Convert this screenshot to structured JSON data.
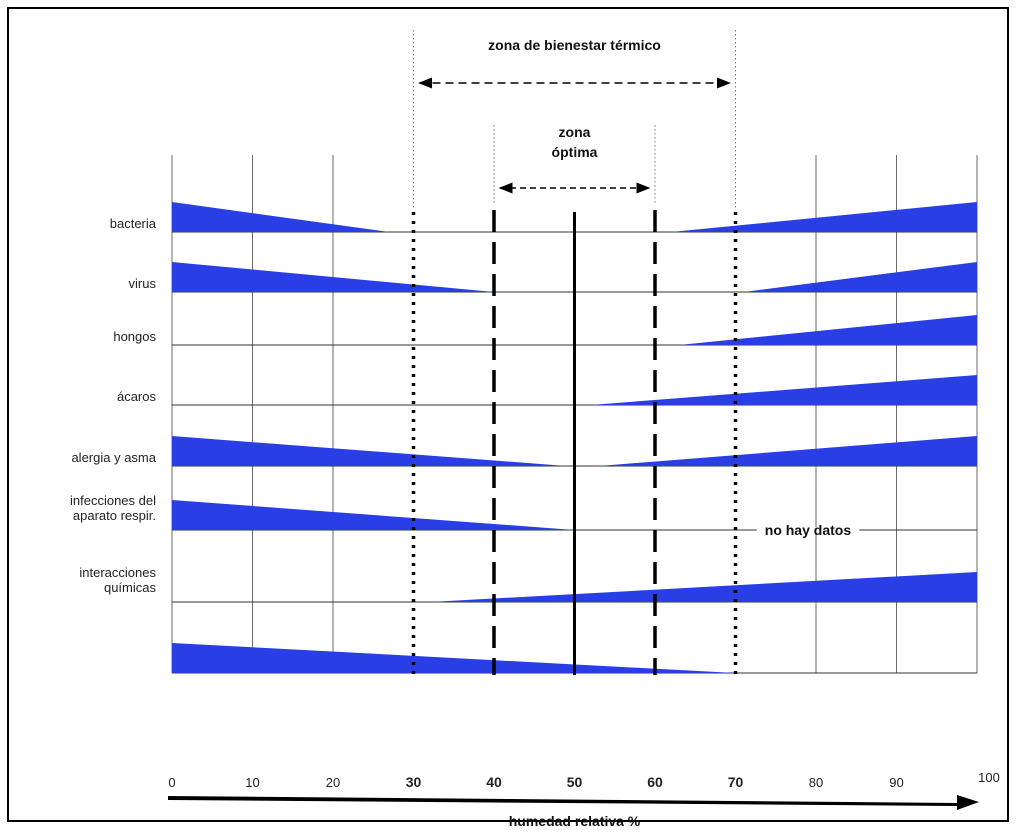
{
  "chart_data": {
    "type": "area",
    "title": "",
    "xlabel": "humedad relativa %",
    "ylabel": "",
    "xlim": [
      0,
      100
    ],
    "x_ticks": [
      0,
      10,
      20,
      30,
      40,
      50,
      60,
      70,
      80,
      90,
      100
    ],
    "bold_ticks": [
      30,
      40,
      50,
      60,
      70
    ],
    "grid": true,
    "zones": [
      {
        "name": "zona de bienestar térmico",
        "range": [
          30,
          70
        ],
        "line_style": "dotted"
      },
      {
        "name": "zona óptima",
        "lines": [
          "zona",
          "óptima"
        ],
        "range": [
          40,
          60
        ],
        "line_style": "dashed"
      }
    ],
    "optimum_line": 50,
    "annotation": "no hay datos",
    "series": [
      {
        "name": "bacteria",
        "lines": [
          "bacteria"
        ],
        "left": {
          "from": 0,
          "to": 27,
          "level": 1.0
        },
        "right": {
          "from": 62,
          "to": 100,
          "level": 1.0
        }
      },
      {
        "name": "virus",
        "lines": [
          "virus"
        ],
        "left": {
          "from": 0,
          "to": 40,
          "level": 1.0
        },
        "right": {
          "from": 71,
          "to": 100,
          "level": 1.0
        }
      },
      {
        "name": "hongos",
        "lines": [
          "hongos"
        ],
        "left": null,
        "right": {
          "from": 63,
          "to": 100,
          "level": 1.0
        }
      },
      {
        "name": "ácaros",
        "lines": [
          "ácaros"
        ],
        "left": null,
        "right": {
          "from": 52,
          "to": 100,
          "level": 1.0
        }
      },
      {
        "name": "alergia y asma",
        "lines": [
          "alergia y asma"
        ],
        "left": {
          "from": 0,
          "to": 49,
          "level": 1.0
        },
        "right": {
          "from": 53,
          "to": 100,
          "level": 1.0
        }
      },
      {
        "name": "infecciones del aparato respir.",
        "lines": [
          "infecciones del",
          "aparato respir."
        ],
        "left": {
          "from": 0,
          "to": 50,
          "level": 1.0
        },
        "right": null
      },
      {
        "name": "interacciones químicas",
        "lines": [
          "interacciones",
          "químicas"
        ],
        "left": null,
        "right": {
          "from": 32,
          "to": 100,
          "level": 1.0
        }
      },
      {
        "name": "",
        "lines": [],
        "left": {
          "from": 0,
          "to": 70,
          "level": 1.0
        },
        "right": null
      }
    ]
  }
}
